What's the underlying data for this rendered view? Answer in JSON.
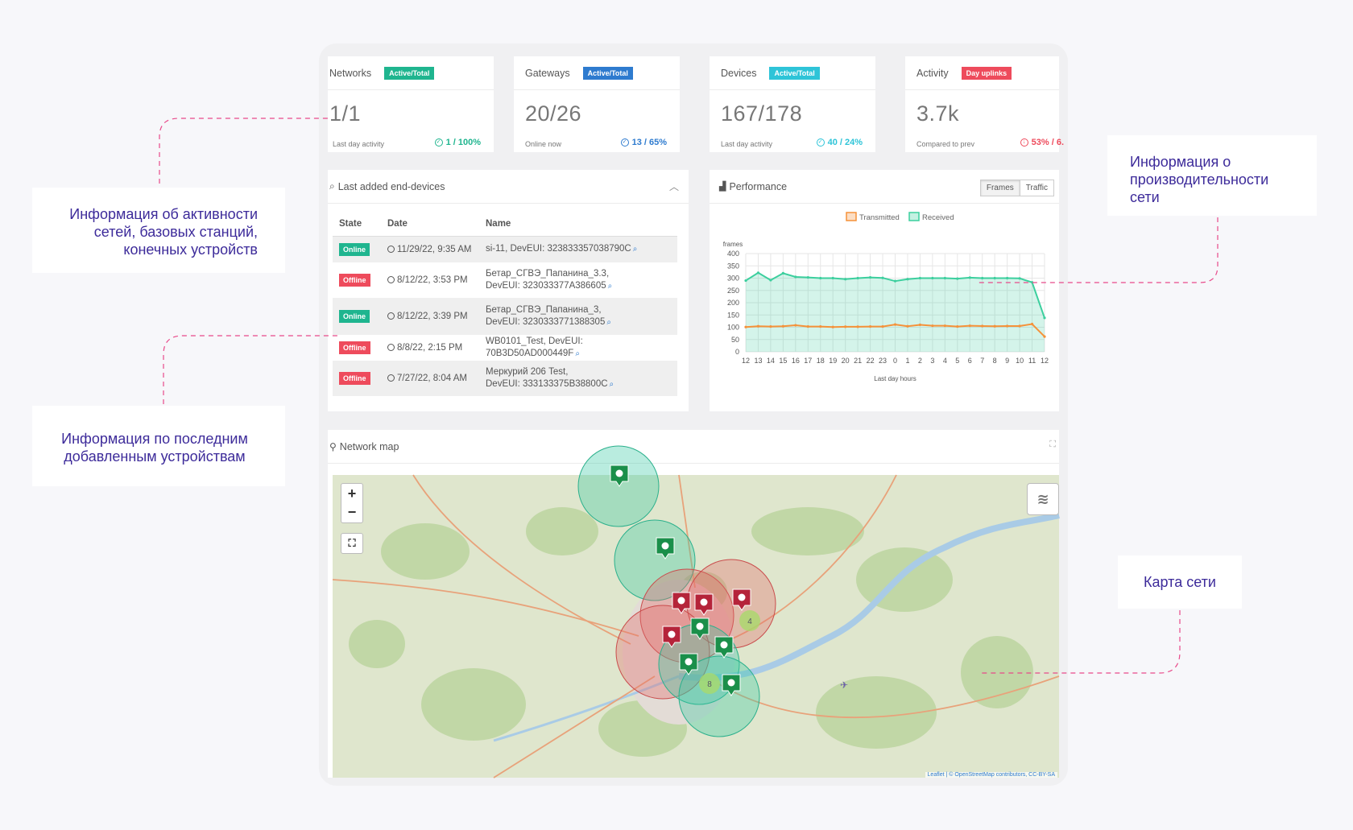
{
  "stats": [
    {
      "title": "Networks",
      "badge": "Active/Total",
      "badge_color": "#1fb58f",
      "value": "1/1",
      "sub": "Last day activity",
      "right": "1 / 100%",
      "right_color": "#1fb58f"
    },
    {
      "title": "Gateways",
      "badge": "Active/Total",
      "badge_color": "#2e7bcf",
      "value": "20/26",
      "sub": "Online now",
      "right": "13 / 65%",
      "right_color": "#2e7bcf"
    },
    {
      "title": "Devices",
      "badge": "Active/Total",
      "badge_color": "#2ec4d8",
      "value": "167/178",
      "sub": "Last day activity",
      "right": "40 / 24%",
      "right_color": "#2ec4d8"
    },
    {
      "title": "Activity",
      "badge": "Day uplinks",
      "badge_color": "#ee4b5c",
      "value": "3.7k",
      "sub": "Compared to prev",
      "right": "53% / 6.",
      "right_color": "#ee4b5c"
    }
  ],
  "devices_panel": {
    "title": "Last added end-devices",
    "columns": [
      "State",
      "Date",
      "Name"
    ],
    "rows": [
      {
        "state": "Online",
        "date": "11/29/22, 9:35 AM",
        "name1": "si-11, DevEUI: 323833357038790C",
        "name2": ""
      },
      {
        "state": "Offline",
        "date": "8/12/22, 3:53 PM",
        "name1": "Бетар_СГВЭ_Папанина_3.3,",
        "name2": "DevEUI: 323033377A386605"
      },
      {
        "state": "Online",
        "date": "8/12/22, 3:39 PM",
        "name1": "Бетар_СГВЭ_Папанина_3,",
        "name2": "DevEUI: 3230333771388305"
      },
      {
        "state": "Offline",
        "date": "8/8/22, 2:15 PM",
        "name1": "WB0101_Test, DevEUI: 70B3D50AD000449F",
        "name2": ""
      },
      {
        "state": "Offline",
        "date": "7/27/22, 8:04 AM",
        "name1": "Меркурий 206 Test,",
        "name2": "DevEUI: 333133375B38800C"
      }
    ]
  },
  "performance": {
    "title": "Performance",
    "tabs": [
      "Frames",
      "Traffic"
    ]
  },
  "chart_data": {
    "type": "area",
    "ylabel": "frames",
    "xlabel": "Last day hours",
    "ylim": [
      0,
      400
    ],
    "yticks": [
      0,
      50,
      100,
      150,
      200,
      250,
      300,
      350,
      400
    ],
    "categories": [
      "12",
      "13",
      "14",
      "15",
      "16",
      "17",
      "18",
      "19",
      "20",
      "21",
      "22",
      "23",
      "0",
      "1",
      "2",
      "3",
      "4",
      "5",
      "6",
      "7",
      "8",
      "9",
      "10",
      "11",
      "12"
    ],
    "series": [
      {
        "name": "Transmitted",
        "color": "#f5923a",
        "values": [
          101,
          104,
          103,
          104,
          108,
          103,
          103,
          101,
          102,
          102,
          103,
          103,
          111,
          104,
          110,
          106,
          106,
          103,
          106,
          105,
          104,
          105,
          105,
          113,
          62
        ]
      },
      {
        "name": "Received",
        "color": "#3ccf9e",
        "values": [
          290,
          322,
          292,
          320,
          305,
          303,
          300,
          300,
          296,
          300,
          303,
          301,
          288,
          296,
          300,
          300,
          300,
          298,
          302,
          300,
          300,
          300,
          299,
          283,
          138
        ]
      }
    ],
    "grid": true,
    "legend": "top"
  },
  "map": {
    "title": "Network map",
    "zoom_in": "+",
    "zoom_out": "−",
    "cluster_labels": [
      "4",
      "8"
    ],
    "attribution": "Leaflet | © OpenStreetMap contributors, CC-BY-SA"
  },
  "annotations": {
    "activity": "Информация об активности сетей, базовых станций, конечных устройств",
    "performance": "Информация о производительности сети",
    "devices": "Информация по последним добавленным устройствам",
    "map": "Карта сети"
  },
  "accent": "#e84a8a"
}
